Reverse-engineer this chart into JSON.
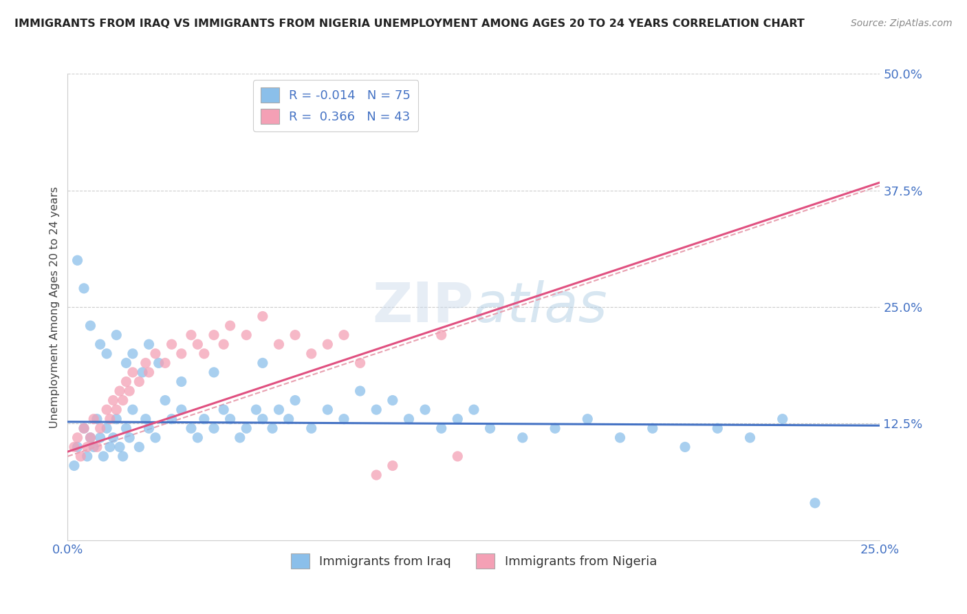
{
  "title": "IMMIGRANTS FROM IRAQ VS IMMIGRANTS FROM NIGERIA UNEMPLOYMENT AMONG AGES 20 TO 24 YEARS CORRELATION CHART",
  "source": "Source: ZipAtlas.com",
  "ylabel": "Unemployment Among Ages 20 to 24 years",
  "xlabel_iraq": "Immigrants from Iraq",
  "xlabel_nigeria": "Immigrants from Nigeria",
  "xlim": [
    0.0,
    0.25
  ],
  "ylim": [
    0.0,
    0.5
  ],
  "ytick_vals": [
    0.125,
    0.25,
    0.375,
    0.5
  ],
  "ytick_labels": [
    "12.5%",
    "25.0%",
    "37.5%",
    "50.0%"
  ],
  "xtick_vals": [
    0.0,
    0.05,
    0.1,
    0.15,
    0.2,
    0.25
  ],
  "xtick_labels": [
    "0.0%",
    "",
    "",
    "",
    "",
    "25.0%"
  ],
  "R_iraq": -0.014,
  "N_iraq": 75,
  "R_nigeria": 0.366,
  "N_nigeria": 43,
  "color_iraq": "#8BBFEA",
  "color_nigeria": "#F4A0B5",
  "line_iraq": "#4472C4",
  "line_nigeria": "#E05080",
  "line_ref_color": "#E8A0B0",
  "watermark": "ZIPatlas",
  "iraq_line_y_at_0": 0.127,
  "iraq_line_y_at_025": 0.123,
  "nigeria_line_y_at_0": 0.095,
  "nigeria_line_y_at_013": 0.245,
  "ref_line_y_at_0": 0.09,
  "ref_line_y_at_025": 0.38,
  "iraq_x": [
    0.002,
    0.003,
    0.005,
    0.006,
    0.007,
    0.008,
    0.009,
    0.01,
    0.011,
    0.012,
    0.013,
    0.014,
    0.015,
    0.016,
    0.017,
    0.018,
    0.019,
    0.02,
    0.022,
    0.024,
    0.025,
    0.027,
    0.03,
    0.032,
    0.035,
    0.038,
    0.04,
    0.042,
    0.045,
    0.048,
    0.05,
    0.053,
    0.055,
    0.058,
    0.06,
    0.063,
    0.065,
    0.068,
    0.07,
    0.075,
    0.08,
    0.085,
    0.09,
    0.095,
    0.1,
    0.105,
    0.11,
    0.115,
    0.12,
    0.125,
    0.13,
    0.14,
    0.15,
    0.16,
    0.17,
    0.18,
    0.19,
    0.2,
    0.21,
    0.22,
    0.003,
    0.005,
    0.007,
    0.01,
    0.012,
    0.015,
    0.018,
    0.02,
    0.023,
    0.025,
    0.028,
    0.035,
    0.045,
    0.06,
    0.23
  ],
  "iraq_y": [
    0.08,
    0.1,
    0.12,
    0.09,
    0.11,
    0.1,
    0.13,
    0.11,
    0.09,
    0.12,
    0.1,
    0.11,
    0.13,
    0.1,
    0.09,
    0.12,
    0.11,
    0.14,
    0.1,
    0.13,
    0.12,
    0.11,
    0.15,
    0.13,
    0.14,
    0.12,
    0.11,
    0.13,
    0.12,
    0.14,
    0.13,
    0.11,
    0.12,
    0.14,
    0.13,
    0.12,
    0.14,
    0.13,
    0.15,
    0.12,
    0.14,
    0.13,
    0.16,
    0.14,
    0.15,
    0.13,
    0.14,
    0.12,
    0.13,
    0.14,
    0.12,
    0.11,
    0.12,
    0.13,
    0.11,
    0.12,
    0.1,
    0.12,
    0.11,
    0.13,
    0.3,
    0.27,
    0.23,
    0.21,
    0.2,
    0.22,
    0.19,
    0.2,
    0.18,
    0.21,
    0.19,
    0.17,
    0.18,
    0.19,
    0.04
  ],
  "nigeria_x": [
    0.002,
    0.003,
    0.004,
    0.005,
    0.006,
    0.007,
    0.008,
    0.009,
    0.01,
    0.012,
    0.013,
    0.014,
    0.015,
    0.016,
    0.017,
    0.018,
    0.019,
    0.02,
    0.022,
    0.024,
    0.025,
    0.027,
    0.03,
    0.032,
    0.035,
    0.038,
    0.04,
    0.042,
    0.045,
    0.048,
    0.05,
    0.055,
    0.06,
    0.065,
    0.07,
    0.075,
    0.08,
    0.085,
    0.09,
    0.095,
    0.1,
    0.115,
    0.12
  ],
  "nigeria_y": [
    0.1,
    0.11,
    0.09,
    0.12,
    0.1,
    0.11,
    0.13,
    0.1,
    0.12,
    0.14,
    0.13,
    0.15,
    0.14,
    0.16,
    0.15,
    0.17,
    0.16,
    0.18,
    0.17,
    0.19,
    0.18,
    0.2,
    0.19,
    0.21,
    0.2,
    0.22,
    0.21,
    0.2,
    0.22,
    0.21,
    0.23,
    0.22,
    0.24,
    0.21,
    0.22,
    0.2,
    0.21,
    0.22,
    0.19,
    0.07,
    0.08,
    0.22,
    0.09
  ]
}
